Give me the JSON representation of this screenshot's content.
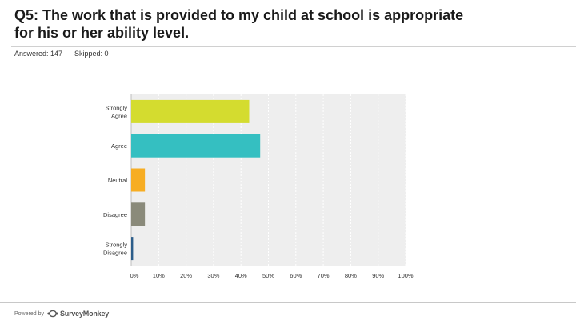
{
  "question": {
    "line1": "Q5: The work that is provided to my child at school is appropriate",
    "line2": "for his or her ability level."
  },
  "meta": {
    "answered": "Answered: 147",
    "skipped": "Skipped: 0"
  },
  "footer": {
    "powered_by": "Powered by",
    "brand": "SurveyMonkey"
  },
  "colors": {
    "strongly_agree": "#d4dc2f",
    "agree": "#35bfc1",
    "neutral": "#f7ad23",
    "disagree": "#8a8a7a",
    "strongly_disagree": "#2c5d8a",
    "plot_bg": "#eeeeee",
    "grid": "#ffffff"
  },
  "chart_data": {
    "type": "bar",
    "orientation": "horizontal",
    "categories": [
      "Strongly Agree",
      "Agree",
      "Neutral",
      "Disagree",
      "Strongly Disagree"
    ],
    "values": [
      43,
      47,
      5,
      5,
      0.7
    ],
    "xlim": [
      0,
      100
    ],
    "xticks": [
      "0%",
      "10%",
      "20%",
      "30%",
      "40%",
      "50%",
      "60%",
      "70%",
      "80%",
      "90%",
      "100%"
    ],
    "grid": true,
    "title": "",
    "xlabel": "",
    "ylabel": ""
  }
}
